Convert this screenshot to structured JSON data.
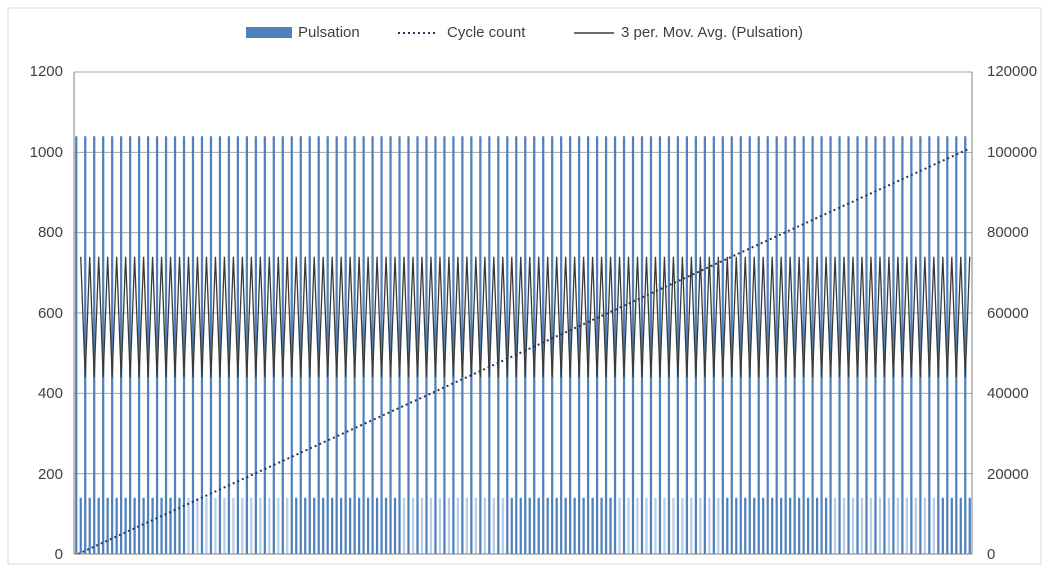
{
  "chart_data": {
    "type": "bar",
    "legend": {
      "position": "top",
      "entries": [
        {
          "label": "Pulsation",
          "kind": "bar"
        },
        {
          "label": "Cycle count",
          "kind": "dotted-line"
        },
        {
          "label": "3 per. Mov. Avg. (Pulsation)",
          "kind": "line"
        }
      ]
    },
    "grid": true,
    "left_axis": {
      "ylim": [
        0,
        1200
      ],
      "ticks": [
        "0",
        "200",
        "400",
        "600",
        "800",
        "1000",
        "1200"
      ]
    },
    "right_axis": {
      "ylim": [
        0,
        120000
      ],
      "ticks": [
        "0",
        "20000",
        "40000",
        "60000",
        "80000",
        "100000",
        "120000"
      ]
    },
    "colors": {
      "pulsation_dark": "#4f81bd",
      "pulsation_light": "#b9cde5",
      "moving_average": "#3a3a3a",
      "cycle_count": "#1f3864",
      "grid": "#a6a6a6",
      "axis": "#808080"
    },
    "series": [
      {
        "name": "Pulsation",
        "kind": "bar",
        "axis": "left",
        "pattern_low": 140,
        "pattern_high": 1040,
        "count": 200,
        "note": "alternating high/low sample pattern"
      },
      {
        "name": "3 per. Mov. Avg. (Pulsation)",
        "kind": "line",
        "axis": "left",
        "range": [
          440,
          740
        ]
      },
      {
        "name": "Cycle count",
        "kind": "dotted-line",
        "axis": "right",
        "start": 0,
        "end": 101000
      }
    ]
  }
}
